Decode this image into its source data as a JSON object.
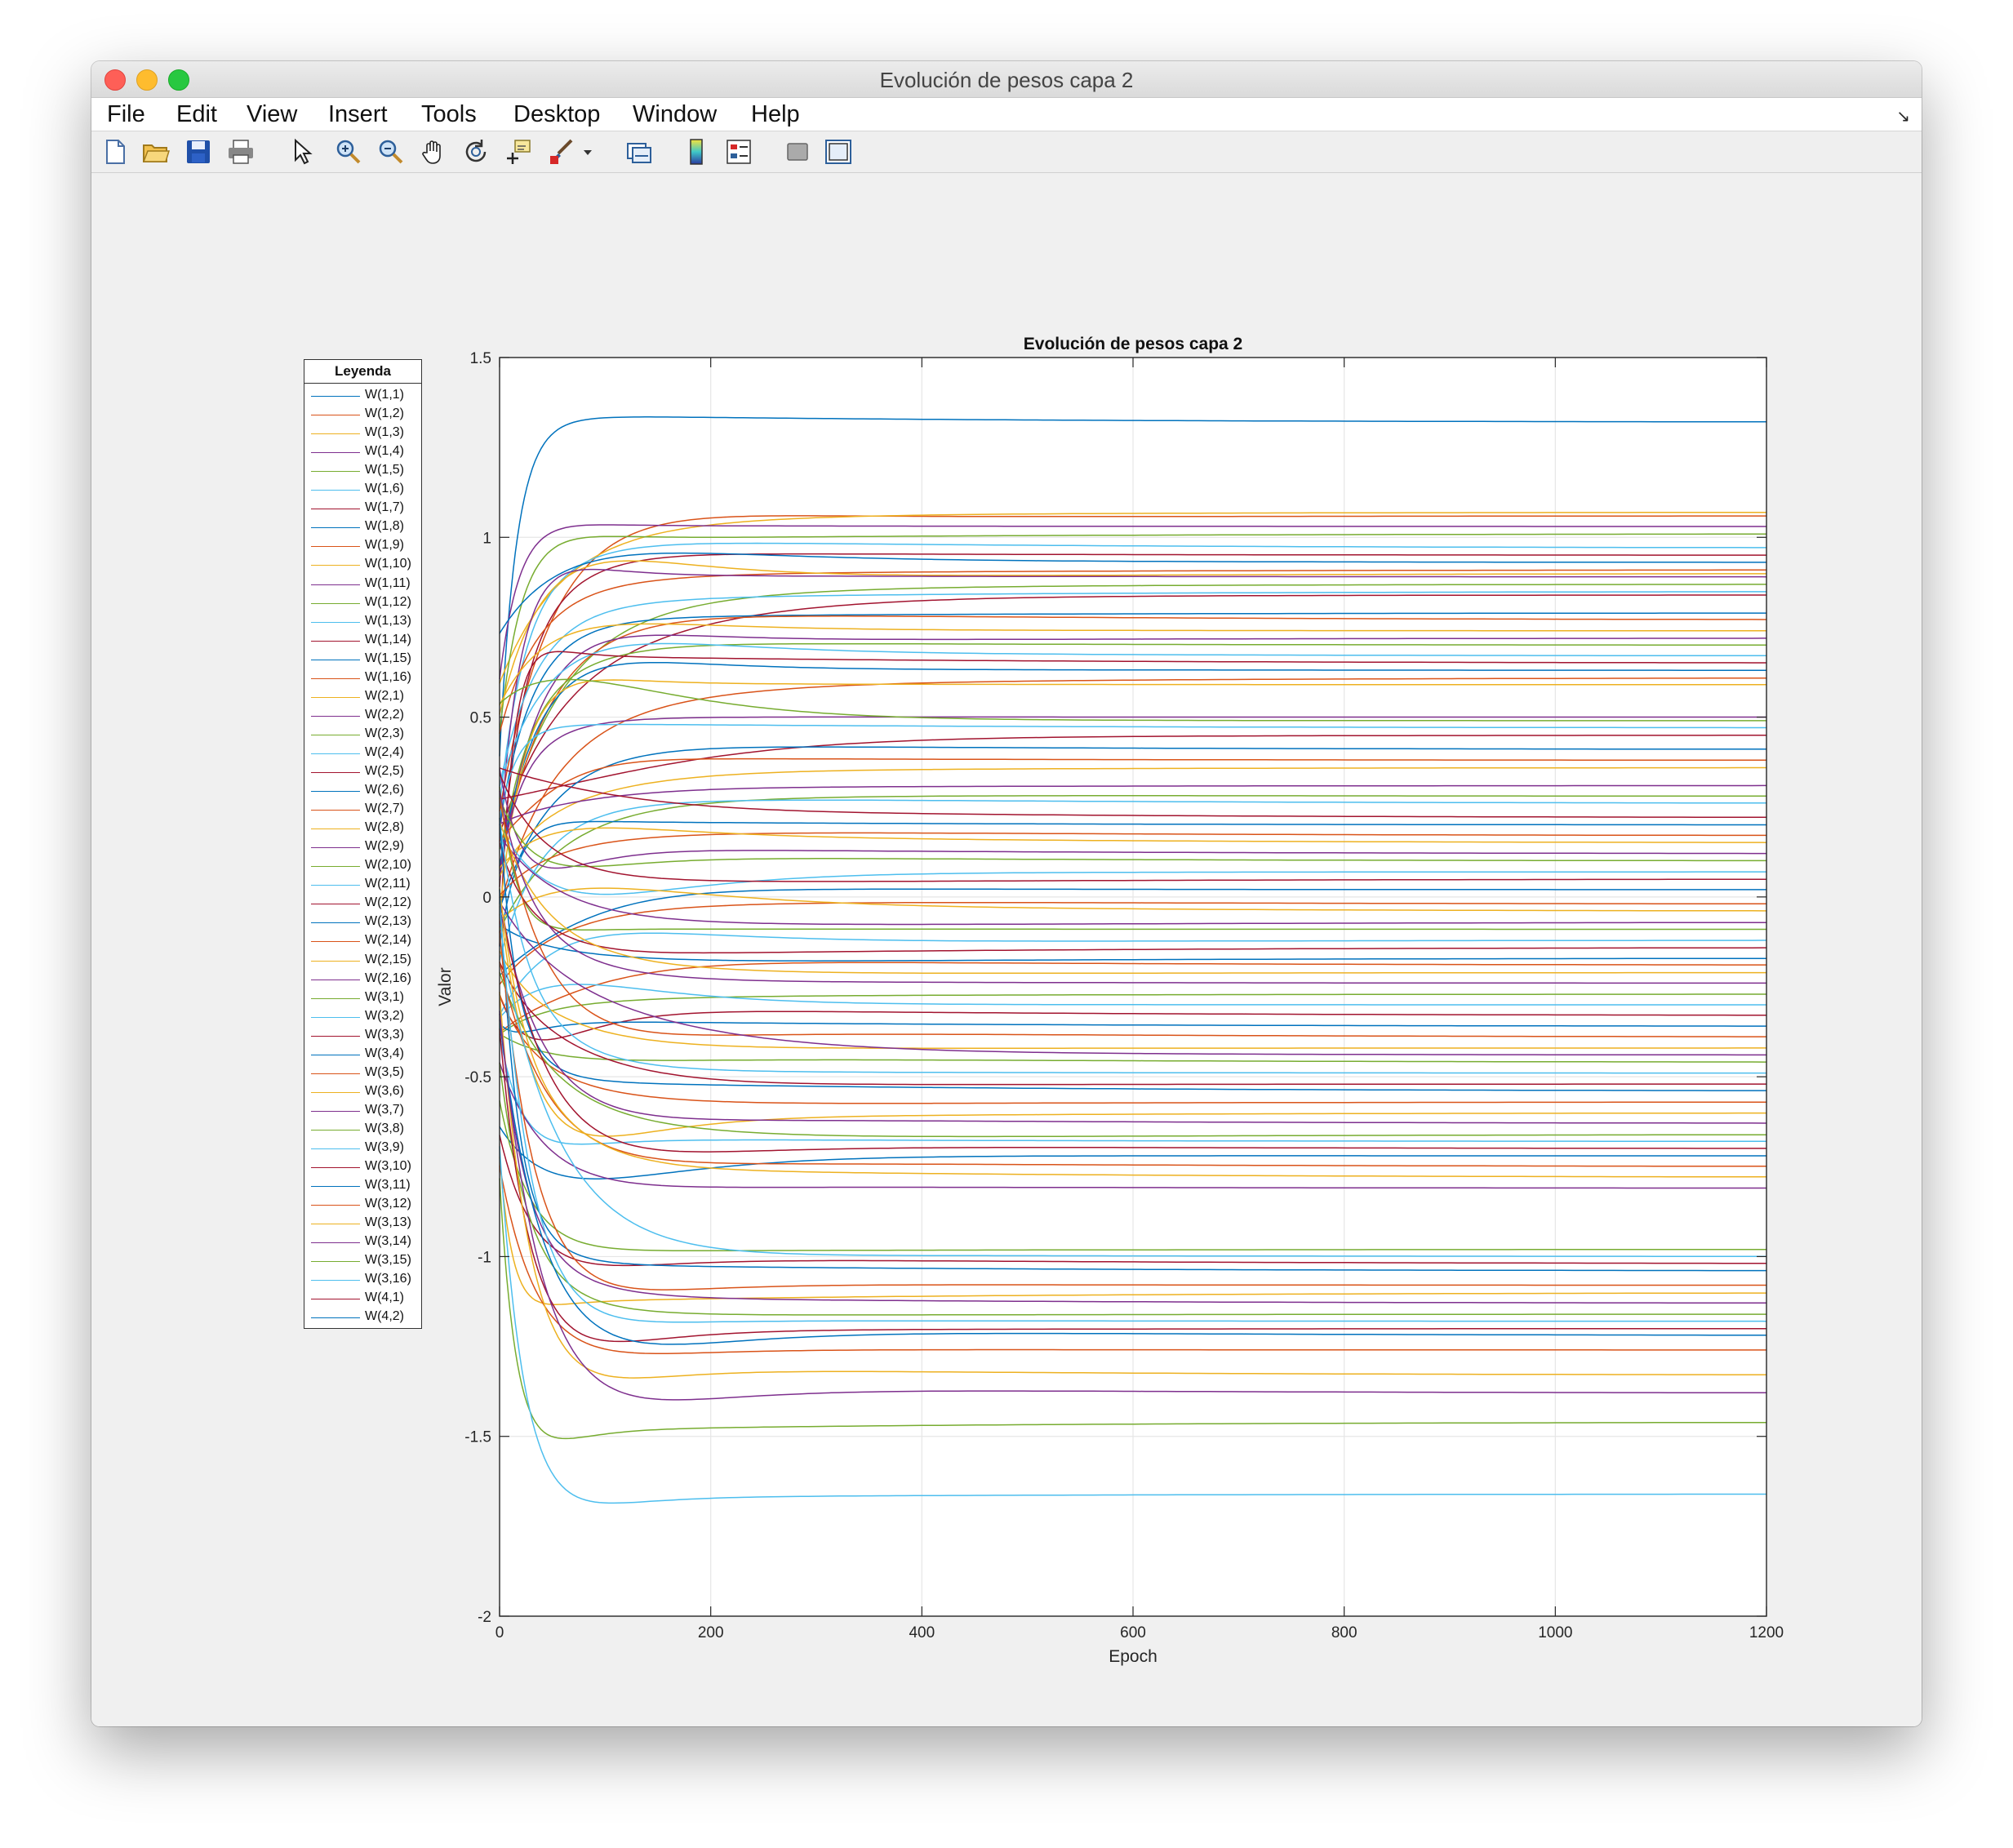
{
  "window": {
    "title": "Evolución de pesos capa 2"
  },
  "menu": {
    "items": [
      "File",
      "Edit",
      "View",
      "Insert",
      "Tools",
      "Desktop",
      "Window",
      "Help"
    ]
  },
  "toolbar": {
    "icons": [
      "new-figure-icon",
      "open-file-icon",
      "save-icon",
      "print-icon",
      "select-arrow-icon",
      "zoom-in-icon",
      "zoom-out-icon",
      "pan-hand-icon",
      "rotate-3d-icon",
      "data-cursor-icon",
      "brush-icon",
      "dropdown-caret-icon",
      "link-plot-icon",
      "insert-colorbar-icon",
      "insert-legend-icon",
      "hide-plot-tools-icon",
      "show-plot-tools-icon"
    ]
  },
  "colors": {
    "series_cycle": [
      "#0072BD",
      "#D95319",
      "#EDB120",
      "#7E2F8E",
      "#77AC30",
      "#4DBEEE",
      "#A2142F"
    ],
    "grid": "#e6e6e6",
    "axis": "#262626"
  },
  "chart_data": {
    "type": "line",
    "title": "Evolución de pesos capa 2",
    "xlabel": "Epoch",
    "ylabel": "Valor",
    "xlim": [
      0,
      1200
    ],
    "ylim": [
      -2,
      1.5
    ],
    "xticks": [
      0,
      200,
      400,
      600,
      800,
      1000,
      1200
    ],
    "xtick_labels": [
      "0",
      "200",
      "400",
      "600",
      "800",
      "1000",
      "1200"
    ],
    "yticks": [
      -2,
      -1.5,
      -1,
      -0.5,
      0,
      0.5,
      1,
      1.5
    ],
    "ytick_labels": [
      "-2",
      "-1.5",
      "-1",
      "-0.5",
      "0",
      "0.5",
      "1",
      "1.5"
    ],
    "grid": true,
    "legend": {
      "title": "Leyenda",
      "placement": "outside-left",
      "entries": [
        "W(1,1)",
        "W(1,2)",
        "W(1,3)",
        "W(1,4)",
        "W(1,5)",
        "W(1,6)",
        "W(1,7)",
        "W(1,8)",
        "W(1,9)",
        "W(1,10)",
        "W(1,11)",
        "W(1,12)",
        "W(1,13)",
        "W(1,14)",
        "W(1,15)",
        "W(1,16)",
        "W(2,1)",
        "W(2,2)",
        "W(2,3)",
        "W(2,4)",
        "W(2,5)",
        "W(2,6)",
        "W(2,7)",
        "W(2,8)",
        "W(2,9)",
        "W(2,10)",
        "W(2,11)",
        "W(2,12)",
        "W(2,13)",
        "W(2,14)",
        "W(2,15)",
        "W(2,16)",
        "W(3,1)",
        "W(3,2)",
        "W(3,3)",
        "W(3,4)",
        "W(3,5)",
        "W(3,6)",
        "W(3,7)",
        "W(3,8)",
        "W(3,9)",
        "W(3,10)",
        "W(3,11)",
        "W(3,12)",
        "W(3,13)",
        "W(3,14)",
        "W(3,15)",
        "W(3,16)",
        "W(4,1)",
        "W(4,2)"
      ]
    },
    "series_final_values": [
      1.32,
      1.06,
      1.07,
      1.03,
      1.01,
      0.97,
      0.95,
      0.93,
      0.91,
      0.9,
      0.89,
      0.87,
      0.85,
      0.84,
      0.79,
      0.77,
      0.74,
      0.72,
      0.7,
      0.67,
      0.65,
      0.63,
      0.61,
      0.59,
      0.5,
      0.49,
      0.47,
      0.45,
      0.41,
      0.38,
      0.36,
      0.31,
      0.28,
      0.26,
      0.22,
      0.2,
      0.17,
      0.15,
      0.12,
      0.1,
      0.07,
      0.05,
      0.02,
      -0.02,
      -0.04,
      -0.07,
      -0.09,
      -0.12,
      -0.14,
      -0.17,
      -0.19,
      -0.21,
      -0.24,
      -0.27,
      -0.3,
      -0.33,
      -0.36,
      -0.39,
      -0.42,
      -0.44,
      -0.46,
      -0.49,
      -0.52,
      -0.54,
      -0.57,
      -0.6,
      -0.63,
      -0.66,
      -0.68,
      -0.7,
      -0.72,
      -0.75,
      -0.78,
      -0.81,
      -0.98,
      -1.0,
      -1.02,
      -1.04,
      -1.08,
      -1.1,
      -1.13,
      -1.16,
      -1.18,
      -1.2,
      -1.22,
      -1.26,
      -1.33,
      -1.38,
      -1.46,
      -1.66
    ]
  }
}
